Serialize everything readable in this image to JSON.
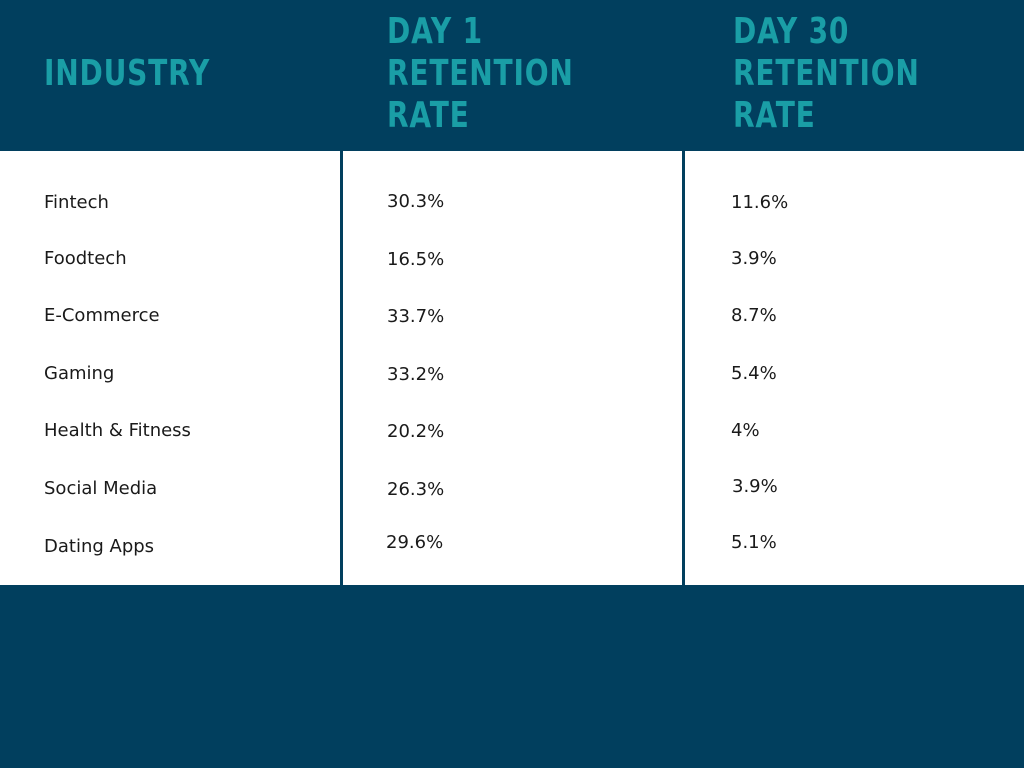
{
  "headers": {
    "industry": [
      "INDUSTRY"
    ],
    "day1": [
      "DAY 1",
      "RETENTION",
      "RATE"
    ],
    "day30": [
      "DAY 30",
      "RETENTION",
      "RATE"
    ]
  },
  "rows": [
    {
      "industry": "Fintech",
      "day1": "30.3%",
      "day30": "11.6%"
    },
    {
      "industry": "Foodtech",
      "day1": "16.5%",
      "day30": "3.9%"
    },
    {
      "industry": "E-Commerce",
      "day1": "33.7%",
      "day30": "8.7%"
    },
    {
      "industry": "Gaming",
      "day1": "33.2%",
      "day30": "5.4%"
    },
    {
      "industry": "Health & Fitness",
      "day1": "20.2%",
      "day30": "4%"
    },
    {
      "industry": "Social Media",
      "day1": "26.3%",
      "day30": "3.9%"
    },
    {
      "industry": "Dating Apps",
      "day1": "29.6%",
      "day30": "5.1%"
    }
  ],
  "colors": {
    "background": "#013f5e",
    "header_text": "#1a9ea6",
    "table_background": "#ffffff",
    "cell_text": "#1a1a1a"
  }
}
